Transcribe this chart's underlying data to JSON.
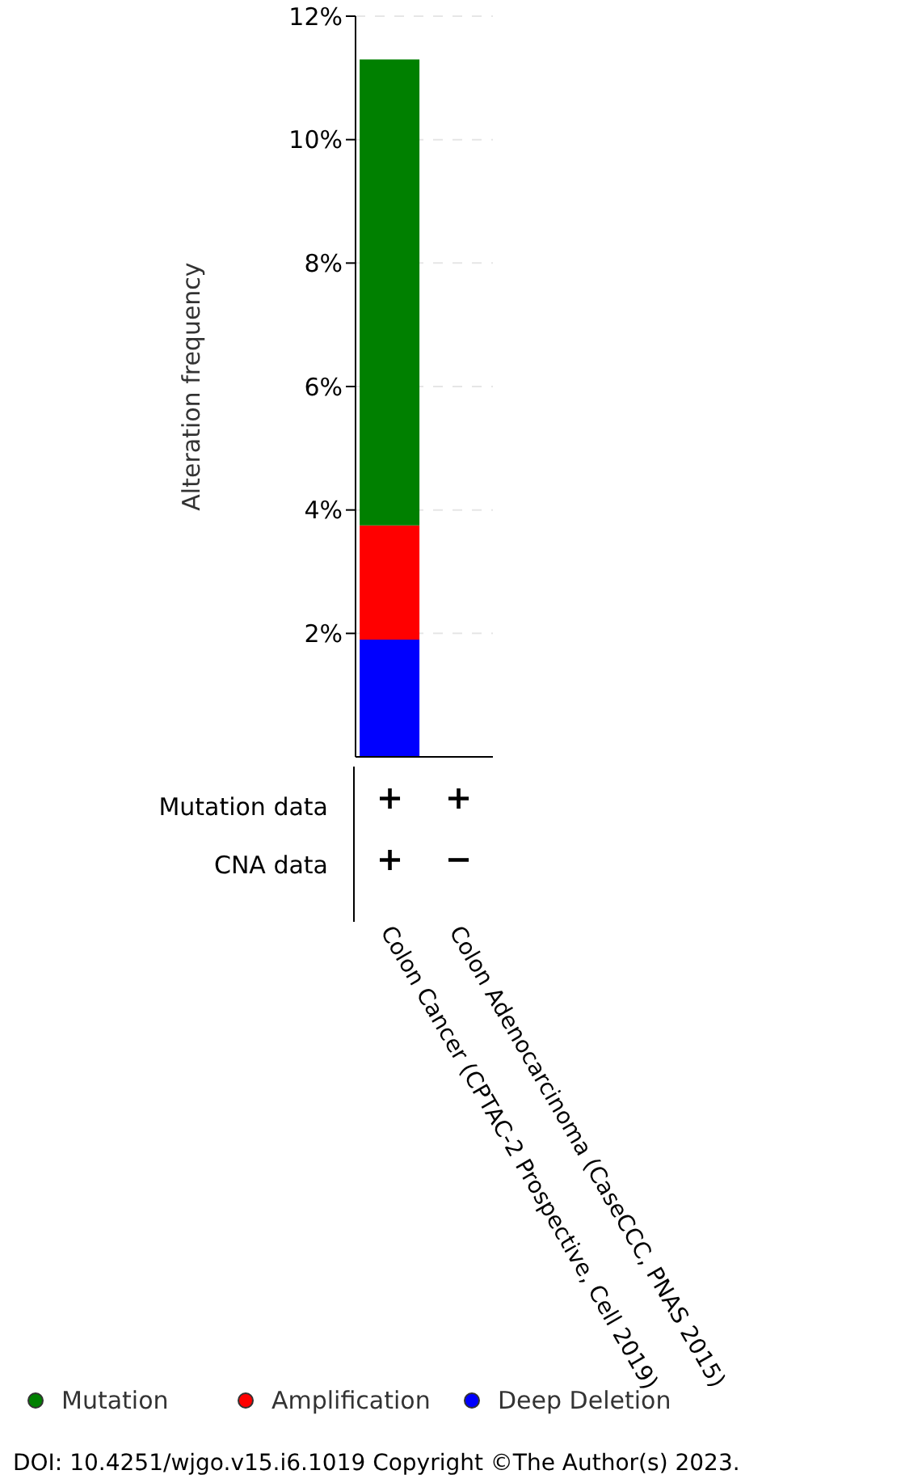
{
  "chart_data": {
    "type": "bar",
    "stacked": true,
    "ylabel": "Alteration frequency",
    "categories": [
      "Colon Cancer (CPTAC-2 Prospective, Cell 2019)",
      "Colon Adenocarcinoma (CaseCCC, PNAS 2015)"
    ],
    "series": [
      {
        "name": "Deep Deletion",
        "color": "#0000ff",
        "values": [
          1.9,
          0
        ]
      },
      {
        "name": "Amplification",
        "color": "#ff0000",
        "values": [
          1.85,
          0
        ]
      },
      {
        "name": "Mutation",
        "color": "#008000",
        "values": [
          7.55,
          0
        ]
      }
    ],
    "ylim": [
      0,
      12
    ],
    "yticks": [
      {
        "value": 2,
        "label": "2%"
      },
      {
        "value": 4,
        "label": "4%"
      },
      {
        "value": 6,
        "label": "6%"
      },
      {
        "value": 8,
        "label": "8%"
      },
      {
        "value": 10,
        "label": "10%"
      },
      {
        "value": 12,
        "label": "12%"
      }
    ],
    "grid": "y",
    "legend": "bottom left",
    "annotations": [
      "Mutation data",
      "CNA data",
      "+",
      "+",
      "+",
      "−",
      "DOI: 10.4251/wjgo.v15.i6.1019 Copyright ©The Author(s) 2023."
    ]
  }
}
